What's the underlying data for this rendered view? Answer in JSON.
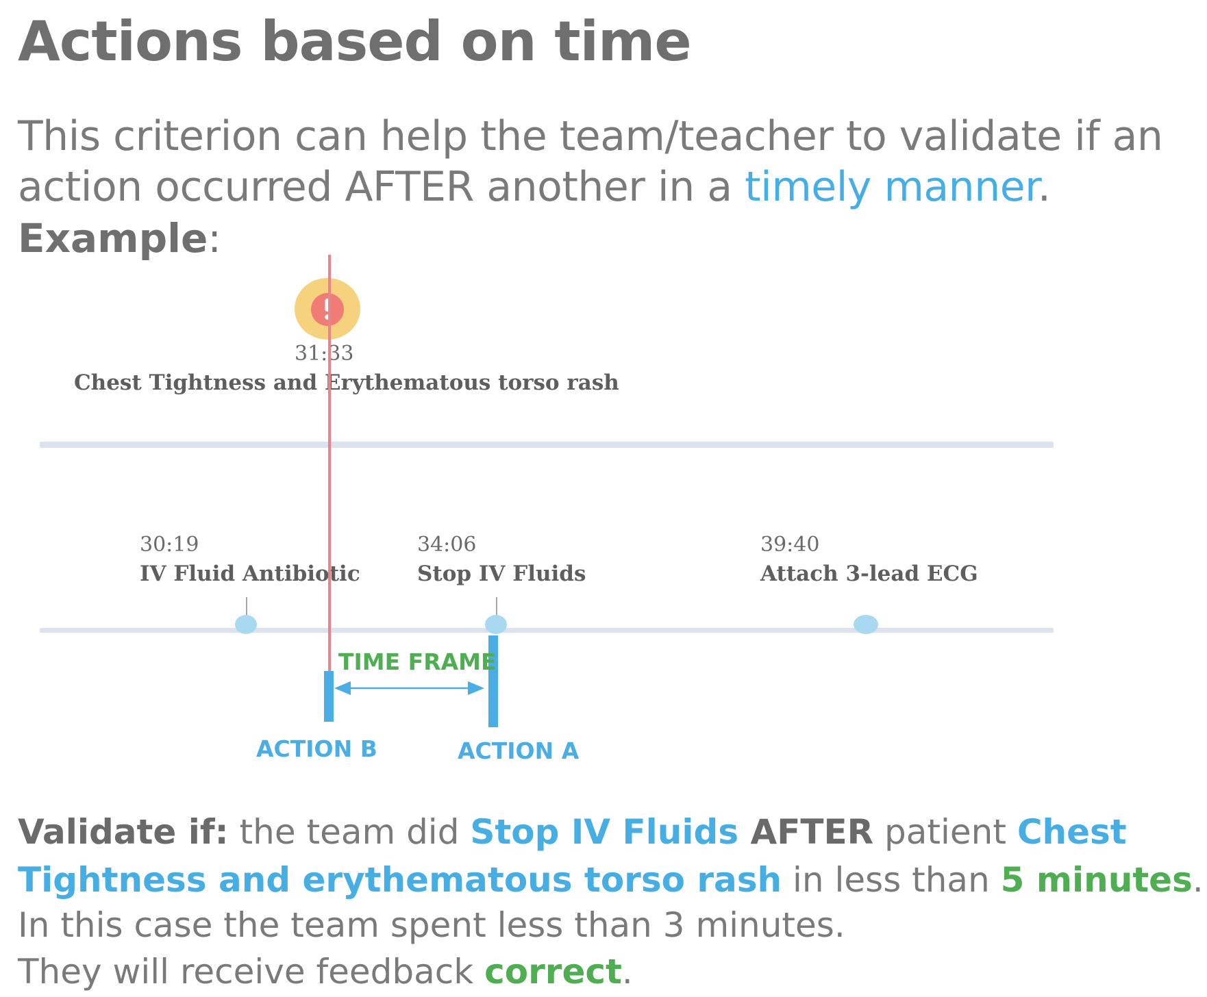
{
  "title": "Actions based on time",
  "intro": {
    "line1": "This criterion can help the team/teacher to validate if an",
    "line2_pre": "action occurred AFTER another in a ",
    "line2_highlight": "timely manner",
    "line2_post": ".",
    "example_label": "Example",
    "example_colon": ":"
  },
  "diagram": {
    "alert_icon": "exclamation-icon",
    "alert_time": "31:33",
    "alert_label": "Chest Tightness and Erythematous torso rash",
    "events": [
      {
        "time": "30:19",
        "label": "IV Fluid Antibiotic"
      },
      {
        "time": "34:06",
        "label": "Stop IV Fluids"
      },
      {
        "time": "39:40",
        "label": "Attach 3-lead ECG"
      }
    ],
    "time_frame_label": "TIME FRAME",
    "action_b_label": "ACTION B",
    "action_a_label": "ACTION A",
    "colors": {
      "alert_line": "#e9848c",
      "alert_halo": "#f6d27f",
      "alert_badge": "#f07c76",
      "track": "#dde2ee",
      "dot": "#a9d9f1",
      "action": "#4aaee4",
      "time_frame": "#4fad52"
    }
  },
  "validate": {
    "label": "Validate if:",
    "t1": " the team did ",
    "action_a": "Stop IV Fluids",
    "after": " AFTER",
    "t2": " patient ",
    "cond_line1": "Chest",
    "cond_line2": "Tightness  and erythematous torso rash",
    "t3": " in less than ",
    "limit": "5 minutes",
    "t4": "."
  },
  "result": {
    "line1": "In this case the team spent less than 3 minutes.",
    "line2_pre": "They will receive feedback ",
    "feedback": "correct",
    "line2_post": "."
  }
}
